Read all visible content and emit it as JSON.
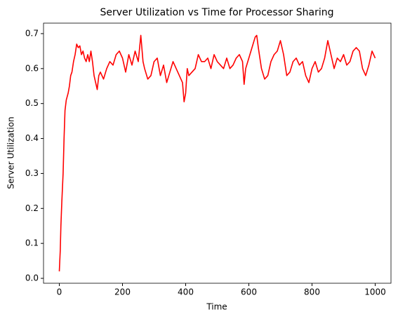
{
  "chart_data": {
    "type": "line",
    "title": "Server Utilization vs Time for Processor Sharing",
    "xlabel": "Time",
    "ylabel": "Server Utilization",
    "x": [
      0,
      3,
      5,
      8,
      12,
      15,
      18,
      22,
      25,
      28,
      32,
      36,
      40,
      45,
      50,
      55,
      60,
      65,
      70,
      75,
      80,
      85,
      90,
      95,
      100,
      105,
      110,
      115,
      120,
      125,
      130,
      140,
      150,
      160,
      170,
      180,
      190,
      200,
      210,
      220,
      230,
      240,
      250,
      258,
      265,
      270,
      280,
      290,
      300,
      310,
      320,
      330,
      340,
      350,
      360,
      370,
      380,
      390,
      395,
      400,
      405,
      410,
      420,
      430,
      440,
      450,
      460,
      470,
      480,
      490,
      500,
      510,
      520,
      530,
      540,
      550,
      560,
      570,
      580,
      585,
      590,
      600,
      610,
      620,
      625,
      630,
      640,
      650,
      660,
      670,
      680,
      690,
      700,
      710,
      720,
      730,
      740,
      750,
      760,
      770,
      780,
      790,
      800,
      810,
      820,
      830,
      840,
      850,
      860,
      870,
      880,
      890,
      900,
      910,
      920,
      930,
      940,
      950,
      960,
      970,
      980,
      990,
      1000
    ],
    "series": [
      {
        "name": "Server Utilization",
        "color": "#ff0000",
        "values": [
          0.02,
          0.08,
          0.15,
          0.22,
          0.3,
          0.4,
          0.48,
          0.51,
          0.52,
          0.53,
          0.55,
          0.58,
          0.59,
          0.62,
          0.64,
          0.67,
          0.66,
          0.665,
          0.64,
          0.65,
          0.63,
          0.62,
          0.64,
          0.62,
          0.65,
          0.62,
          0.58,
          0.56,
          0.54,
          0.58,
          0.59,
          0.57,
          0.6,
          0.62,
          0.61,
          0.64,
          0.65,
          0.63,
          0.59,
          0.64,
          0.61,
          0.65,
          0.62,
          0.695,
          0.62,
          0.6,
          0.57,
          0.58,
          0.62,
          0.63,
          0.58,
          0.61,
          0.56,
          0.59,
          0.62,
          0.6,
          0.58,
          0.56,
          0.505,
          0.53,
          0.6,
          0.58,
          0.59,
          0.6,
          0.64,
          0.62,
          0.62,
          0.63,
          0.6,
          0.64,
          0.62,
          0.61,
          0.6,
          0.63,
          0.6,
          0.61,
          0.63,
          0.64,
          0.62,
          0.555,
          0.6,
          0.63,
          0.66,
          0.69,
          0.695,
          0.66,
          0.6,
          0.57,
          0.58,
          0.62,
          0.64,
          0.65,
          0.68,
          0.64,
          0.58,
          0.59,
          0.62,
          0.63,
          0.61,
          0.62,
          0.58,
          0.56,
          0.6,
          0.62,
          0.59,
          0.6,
          0.63,
          0.68,
          0.64,
          0.6,
          0.63,
          0.62,
          0.64,
          0.61,
          0.62,
          0.65,
          0.66,
          0.65,
          0.6,
          0.58,
          0.61,
          0.65,
          0.63
        ]
      }
    ],
    "xlim": [
      -50,
      1050
    ],
    "xticks": [
      0,
      200,
      400,
      600,
      800,
      1000
    ],
    "ylim": [
      -0.014,
      0.73
    ],
    "yticks": [
      {
        "value": 0,
        "label": "0.0"
      },
      0.1,
      0.2,
      0.3,
      0.4,
      0.5,
      0.6,
      0.7
    ]
  }
}
